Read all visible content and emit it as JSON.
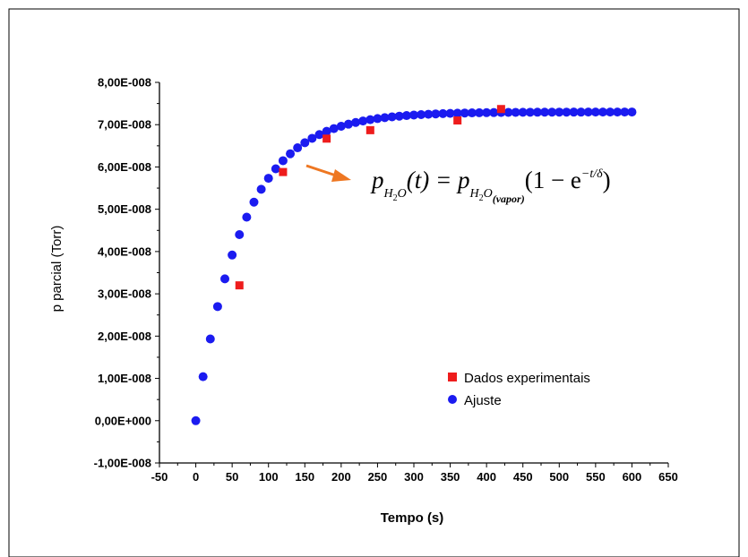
{
  "chart_data": {
    "type": "scatter",
    "xlabel": "Tempo (s)",
    "ylabel": "p parcial (Torr)",
    "xlim": [
      -50,
      650
    ],
    "ylim": [
      -1e-08,
      8e-08
    ],
    "x_ticks": [
      -50,
      0,
      50,
      100,
      150,
      200,
      250,
      300,
      350,
      400,
      450,
      500,
      550,
      600,
      650
    ],
    "x_tick_labels": [
      "-50",
      "0",
      "50",
      "100",
      "150",
      "200",
      "250",
      "300",
      "350",
      "400",
      "450",
      "500",
      "550",
      "600",
      "650"
    ],
    "y_ticks": [
      -1e-08,
      0,
      1e-08,
      2e-08,
      3e-08,
      4e-08,
      5e-08,
      6e-08,
      7e-08,
      8e-08
    ],
    "y_tick_labels": [
      "-1,00E-008",
      "0,00E+000",
      "1,00E-008",
      "2,00E-008",
      "3,00E-008",
      "4,00E-008",
      "5,00E-008",
      "6,00E-008",
      "7,00E-008",
      "8,00E-008"
    ],
    "grid": false,
    "legend_position": "bottom-right",
    "series": [
      {
        "name": "Dados experimentais",
        "marker": "square",
        "color": "#ee1c1c",
        "x": [
          60,
          120,
          180,
          240,
          360,
          420
        ],
        "y": [
          3.2e-08,
          5.88e-08,
          6.67e-08,
          6.87e-08,
          7.1e-08,
          7.37e-08
        ]
      },
      {
        "name": "Ajuste",
        "marker": "circle",
        "color": "#1b1bf0",
        "fit": {
          "x_start": 0,
          "x_end": 600,
          "x_step": 10,
          "amplitude": 7.3e-08,
          "delta": 65
        }
      }
    ],
    "annotation": {
      "formula_parts": [
        "p",
        "H",
        "2",
        "O",
        "(t) = p",
        "H",
        "2",
        "O",
        "(vapor)",
        "(1 − e",
        "−t/δ",
        ")"
      ],
      "arrow_color": "#ee7722"
    }
  }
}
